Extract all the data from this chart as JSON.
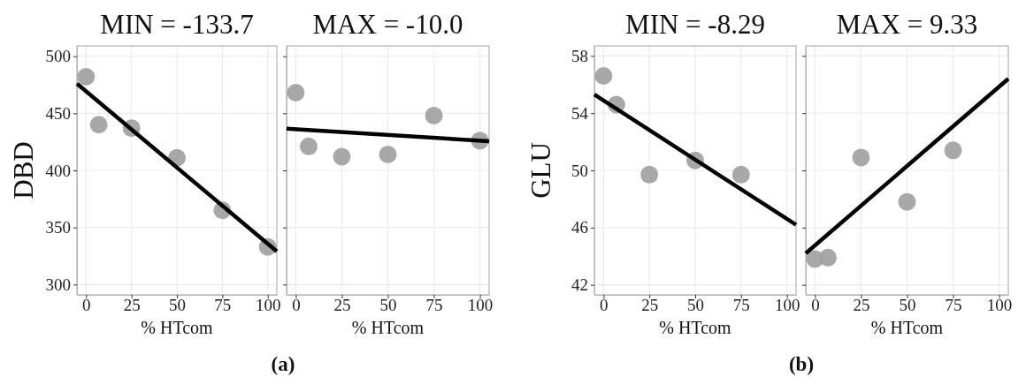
{
  "chart_data": [
    {
      "type": "scatter",
      "title": "MIN = -133.7",
      "xlabel": "% HTcom",
      "ylabel": "DBD",
      "xlim": [
        -5,
        105
      ],
      "ylim": [
        291,
        509
      ],
      "xticks": [
        0,
        25,
        50,
        75,
        100
      ],
      "yticks": [
        300,
        350,
        400,
        450,
        500
      ],
      "grid": true,
      "annotations": [
        "(a)"
      ],
      "series": [
        {
          "type": "scatter",
          "color": "#9e9e9e",
          "x": [
            0,
            7,
            25,
            50,
            75,
            100
          ],
          "values": [
            482,
            440,
            437,
            411,
            365,
            333
          ]
        },
        {
          "type": "line",
          "color": "#000000",
          "x": [
            -5,
            105
          ],
          "values": [
            476,
            329
          ]
        }
      ]
    },
    {
      "type": "scatter",
      "title": "MAX = -10.0",
      "xlabel": "% HTcom",
      "xlim": [
        -5,
        105
      ],
      "ylim": [
        291,
        509
      ],
      "xticks": [
        0,
        25,
        50,
        75,
        100
      ],
      "yticks": [
        300,
        350,
        400,
        450,
        500
      ],
      "grid": true,
      "tick_labels": "x",
      "series": [
        {
          "type": "scatter",
          "color": "#9e9e9e",
          "x": [
            0,
            7,
            25,
            50,
            75,
            100
          ],
          "values": [
            468,
            421,
            412,
            414,
            448,
            426
          ]
        },
        {
          "type": "line",
          "color": "#000000",
          "x": [
            -5,
            105
          ],
          "values": [
            436.5,
            425.5
          ]
        }
      ]
    },
    {
      "type": "scatter",
      "title": "MIN = -8.29",
      "xlabel": "% HTcom",
      "ylabel": "GLU",
      "xlim": [
        -5,
        105
      ],
      "ylim": [
        41.3,
        58.7
      ],
      "xticks": [
        0,
        25,
        50,
        75,
        100
      ],
      "yticks": [
        42,
        46,
        50,
        54,
        58
      ],
      "grid": true,
      "annotations": [
        "(b)"
      ],
      "series": [
        {
          "type": "scatter",
          "color": "#9e9e9e",
          "x": [
            0,
            7,
            25,
            50,
            75
          ],
          "values": [
            56.6,
            54.6,
            49.7,
            50.7,
            49.7
          ]
        },
        {
          "type": "line",
          "color": "#000000",
          "x": [
            -5,
            105
          ],
          "values": [
            55.3,
            46.2
          ]
        }
      ]
    },
    {
      "type": "scatter",
      "title": "MAX = 9.33",
      "xlabel": "% HTcom",
      "xlim": [
        -5,
        105
      ],
      "ylim": [
        41.3,
        58.7
      ],
      "xticks": [
        0,
        25,
        50,
        75,
        100
      ],
      "yticks": [
        42,
        46,
        50,
        54,
        58
      ],
      "grid": true,
      "tick_labels": "x",
      "series": [
        {
          "type": "scatter",
          "color": "#9e9e9e",
          "x": [
            0,
            7,
            25,
            50,
            75
          ],
          "values": [
            43.8,
            43.9,
            50.9,
            47.8,
            51.4
          ]
        },
        {
          "type": "line",
          "color": "#000000",
          "x": [
            -5,
            105
          ],
          "values": [
            44.2,
            56.4
          ]
        }
      ]
    }
  ]
}
